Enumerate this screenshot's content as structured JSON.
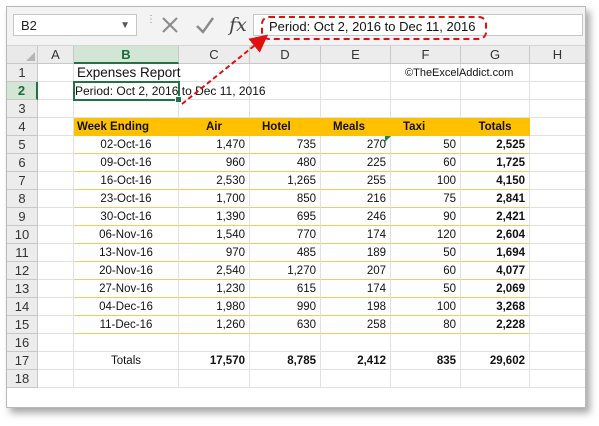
{
  "formula_bar": {
    "name_box": "B2",
    "formula": "Period: Oct 2, 2016 to Dec 11, 2016",
    "fx_label": "fx"
  },
  "columns": [
    "A",
    "B",
    "C",
    "D",
    "E",
    "F",
    "G",
    "H"
  ],
  "rows": [
    "1",
    "2",
    "3",
    "4",
    "5",
    "6",
    "7",
    "8",
    "9",
    "10",
    "11",
    "12",
    "13",
    "14",
    "15",
    "16",
    "17",
    "18"
  ],
  "sheet": {
    "title": "Expenses Report",
    "period": "Period: Oct 2, 2016 to Dec 11, 2016",
    "credit": "©TheExcelAddict.com",
    "headers": [
      "Week Ending",
      "Air",
      "Hotel",
      "Meals",
      "Taxi",
      "Totals"
    ],
    "data": [
      [
        "02-Oct-16",
        "1,470",
        "735",
        "270",
        "50",
        "2,525"
      ],
      [
        "09-Oct-16",
        "960",
        "480",
        "225",
        "60",
        "1,725"
      ],
      [
        "16-Oct-16",
        "2,530",
        "1,265",
        "255",
        "100",
        "4,150"
      ],
      [
        "23-Oct-16",
        "1,700",
        "850",
        "216",
        "75",
        "2,841"
      ],
      [
        "30-Oct-16",
        "1,390",
        "695",
        "246",
        "90",
        "2,421"
      ],
      [
        "06-Nov-16",
        "1,540",
        "770",
        "174",
        "120",
        "2,604"
      ],
      [
        "13-Nov-16",
        "970",
        "485",
        "189",
        "50",
        "1,694"
      ],
      [
        "20-Nov-16",
        "2,540",
        "1,270",
        "207",
        "60",
        "4,077"
      ],
      [
        "27-Nov-16",
        "1,230",
        "615",
        "174",
        "50",
        "2,069"
      ],
      [
        "04-Dec-16",
        "1,980",
        "990",
        "198",
        "100",
        "3,268"
      ],
      [
        "11-Dec-16",
        "1,260",
        "630",
        "258",
        "80",
        "2,228"
      ]
    ],
    "totals": [
      "Totals",
      "17,570",
      "8,785",
      "2,412",
      "835",
      "29,602"
    ]
  },
  "colors": {
    "header_fill": "#ffc000",
    "selection": "#217346",
    "callout": "#e01010"
  },
  "icons": [
    "cancel-icon",
    "enter-icon",
    "function-icon",
    "dropdown-icon"
  ]
}
